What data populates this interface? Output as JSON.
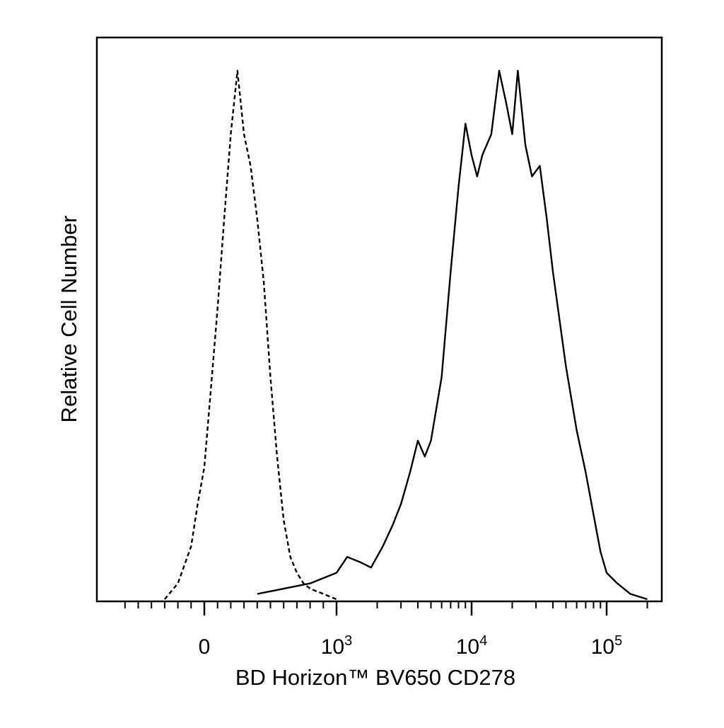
{
  "chart_data": {
    "type": "line",
    "title": "",
    "xlabel": "BD Horizon™ BV650 CD278",
    "ylabel": "Relative Cell Number",
    "x_scale": "biexponential",
    "xlim": [
      -700,
      200000
    ],
    "ylim": [
      0,
      100
    ],
    "grid": false,
    "legend": "none",
    "x_ticks": [
      {
        "value": 0,
        "base": "0",
        "exp": ""
      },
      {
        "value": 1000,
        "base": "10",
        "exp": "3"
      },
      {
        "value": 10000,
        "base": "10",
        "exp": "4"
      },
      {
        "value": 100000,
        "base": "10",
        "exp": "5"
      }
    ],
    "colors": {
      "line": "#000000",
      "frame": "#000000",
      "background": "#ffffff"
    },
    "series": [
      {
        "style": "dashed",
        "x": [
          -300,
          -200,
          -100,
          -50,
          0,
          50,
          100,
          150,
          200,
          250,
          300,
          350,
          400,
          450,
          500,
          550,
          600,
          650,
          700,
          750,
          800,
          900,
          1000
        ],
        "y": [
          0,
          3,
          10,
          18,
          25,
          40,
          55,
          72,
          88,
          100,
          88,
          82,
          72,
          60,
          42,
          27,
          15,
          8,
          5,
          3,
          2,
          1,
          0
        ]
      },
      {
        "style": "solid",
        "x": [
          400,
          600,
          800,
          1000,
          1200,
          1500,
          1800,
          2200,
          2600,
          3000,
          3500,
          4000,
          4500,
          5000,
          6000,
          7000,
          8000,
          9000,
          10000,
          11000,
          12000,
          14000,
          16000,
          18000,
          20000,
          22000,
          25000,
          28000,
          32000,
          36000,
          40000,
          50000,
          60000,
          70000,
          80000,
          90000,
          100000,
          120000,
          150000,
          200000
        ],
        "y": [
          1,
          2,
          3,
          5,
          8,
          7,
          6,
          10,
          14,
          18,
          24,
          30,
          27,
          30,
          42,
          62,
          78,
          90,
          84,
          80,
          84,
          88,
          100,
          94,
          88,
          100,
          86,
          80,
          82,
          72,
          62,
          44,
          32,
          24,
          16,
          9,
          5,
          3,
          1,
          0
        ]
      }
    ]
  }
}
